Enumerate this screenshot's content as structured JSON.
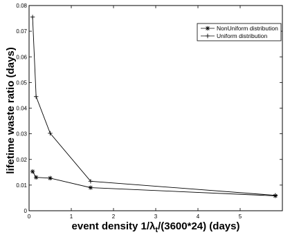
{
  "chart_data": {
    "type": "line",
    "xlabel": "event density 1/λt/(3600*24) (days)",
    "xlabel_parts": {
      "prefix": "event density 1/λ",
      "sub": "t",
      "suffix": "/(3600*24) (days)"
    },
    "ylabel": "lifetime waste ratio (days)",
    "xlim": [
      0,
      6
    ],
    "ylim": [
      0,
      0.08
    ],
    "xticks": [
      0,
      1,
      2,
      3,
      4,
      5
    ],
    "xtick_labels": [
      "0",
      "1",
      "2",
      "3",
      "4",
      "5"
    ],
    "yticks": [
      0,
      0.01,
      0.02,
      0.03,
      0.04,
      0.05,
      0.06,
      0.07,
      0.08
    ],
    "ytick_labels": [
      "0",
      "0.01",
      "0.02",
      "0.03",
      "0.04",
      "0.05",
      "0.06",
      "0.07",
      "0.08"
    ],
    "legend": {
      "placement": "top-right"
    },
    "grid": false,
    "series": [
      {
        "name": "NonUniform distribution",
        "marker": "asterisk",
        "color": "#000000",
        "x": [
          0.0833,
          0.1667,
          0.5,
          1.4583,
          5.8333
        ],
        "y": [
          0.0153,
          0.013,
          0.0127,
          0.009,
          0.0058
        ]
      },
      {
        "name": "Uniform distribution",
        "marker": "plus",
        "color": "#000000",
        "x": [
          0.0833,
          0.1667,
          0.5,
          1.4583,
          5.8333
        ],
        "y": [
          0.0755,
          0.0445,
          0.0302,
          0.0115,
          0.006
        ]
      }
    ]
  }
}
